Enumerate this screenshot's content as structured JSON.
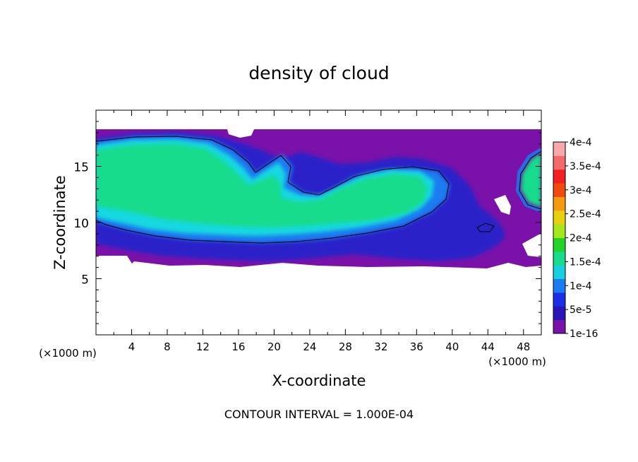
{
  "chart_data": {
    "type": "heatmap",
    "title": "density of cloud",
    "xlabel": "X-coordinate",
    "ylabel": "Z-coordinate",
    "x_unit": "(×1000 m)",
    "y_unit": "(×1000 m)",
    "footer": "CONTOUR INTERVAL = 1.000E-04",
    "xlim": [
      0,
      50
    ],
    "ylim": [
      0,
      20
    ],
    "x_ticks": [
      "4",
      "8",
      "12",
      "16",
      "20",
      "24",
      "28",
      "32",
      "36",
      "40",
      "44",
      "48"
    ],
    "y_ticks": [
      "5",
      "10",
      "15"
    ],
    "colorbar_labels": [
      "1e-16",
      "5e-5",
      "1e-4",
      "1.5e-4",
      "2e-4",
      "2.5e-4",
      "3e-4",
      "3.5e-4",
      "4e-4"
    ],
    "colorbar_values": [
      1e-16,
      5e-05,
      0.0001,
      0.00015,
      0.0002,
      0.00025,
      0.0003,
      0.00035,
      0.0004
    ],
    "colors": [
      "#7a12aa",
      "#2a16b8",
      "#1c2fe6",
      "#1a7cf0",
      "#18cfe0",
      "#18dc8c",
      "#22d428",
      "#a6e61a",
      "#e8d010",
      "#f59a10",
      "#f04a10",
      "#f22020",
      "#f46a6a",
      "#f8a8a8"
    ],
    "contour_levels": [
      0.0001
    ],
    "grid": false
  }
}
